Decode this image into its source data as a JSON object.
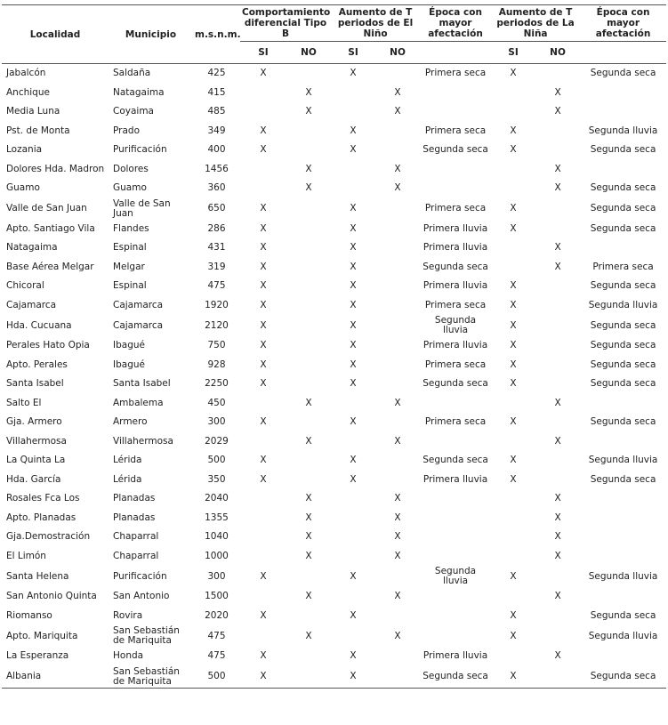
{
  "header": {
    "columns": [
      "Localidad",
      "Municipio",
      "m.s.n.m.",
      "Comportamiento diferencial Tipo B",
      "Aumento de T periodos de El Niño",
      "Época con mayor afectación",
      "Aumento de T periodos de La Niña",
      "Época con mayor afectación"
    ],
    "sub": [
      "SI",
      "NO",
      "SI",
      "NO",
      "SI",
      "NO"
    ]
  },
  "table": {
    "rows": [
      [
        "Jabalcón",
        "Saldaña",
        "425",
        "X",
        null,
        "X",
        null,
        "Primera seca",
        "X",
        null,
        "Segunda seca"
      ],
      [
        "Anchique",
        "Natagaima",
        "415",
        null,
        "X",
        null,
        "X",
        null,
        null,
        "X",
        null
      ],
      [
        "Media Luna",
        "Coyaima",
        "485",
        null,
        "X",
        null,
        "X",
        null,
        null,
        "X",
        null
      ],
      [
        "Pst. de Monta",
        "Prado",
        "349",
        "X",
        null,
        "X",
        null,
        "Primera seca",
        "X",
        null,
        "Segunda lluvia"
      ],
      [
        "Lozania",
        "Purificación",
        "400",
        "X",
        null,
        "X",
        null,
        "Segunda seca",
        "X",
        null,
        "Segunda seca"
      ],
      [
        "Dolores Hda. Madron",
        "Dolores",
        "1456",
        null,
        "X",
        null,
        "X",
        null,
        null,
        "X",
        null
      ],
      [
        "Guamo",
        "Guamo",
        "360",
        null,
        "X",
        null,
        "X",
        null,
        null,
        "X",
        "Segunda seca"
      ],
      [
        "Valle de San Juan",
        "Valle de San Juan",
        "650",
        "X",
        null,
        "X",
        null,
        "Primera seca",
        "X",
        null,
        "Segunda seca"
      ],
      [
        "Apto. Santiago Vila",
        "Flandes",
        "286",
        "X",
        null,
        "X",
        null,
        "Primera lluvia",
        "X",
        null,
        "Segunda seca"
      ],
      [
        "Natagaima",
        "Espinal",
        "431",
        "X",
        null,
        "X",
        null,
        "Primera lluvia",
        null,
        "X",
        null
      ],
      [
        "Base Aérea Melgar",
        "Melgar",
        "319",
        "X",
        null,
        "X",
        null,
        "Segunda seca",
        null,
        "X",
        "Primera seca"
      ],
      [
        "Chicoral",
        "Espinal",
        "475",
        "X",
        null,
        "X",
        null,
        "Primera lluvia",
        "X",
        null,
        "Segunda seca"
      ],
      [
        "Cajamarca",
        "Cajamarca",
        "1920",
        "X",
        null,
        "X",
        null,
        "Primera seca",
        "X",
        null,
        "Segunda lluvia"
      ],
      [
        "Hda. Cucuana",
        "Cajamarca",
        "2120",
        "X",
        null,
        "X",
        null,
        "Segunda lluvia",
        "X",
        null,
        "Segunda seca"
      ],
      [
        "Perales Hato Opia",
        "Ibagué",
        "750",
        "X",
        null,
        "X",
        null,
        "Primera lluvia",
        "X",
        null,
        "Segunda seca"
      ],
      [
        "Apto. Perales",
        "Ibagué",
        "928",
        "X",
        null,
        "X",
        null,
        "Primera seca",
        "X",
        null,
        "Segunda seca"
      ],
      [
        "Santa Isabel",
        "Santa Isabel",
        "2250",
        "X",
        null,
        "X",
        null,
        "Segunda seca",
        "X",
        null,
        "Segunda seca"
      ],
      [
        "Salto El",
        "Ambalema",
        "450",
        null,
        "X",
        null,
        "X",
        null,
        null,
        "X",
        null
      ],
      [
        "Gja. Armero",
        "Armero",
        "300",
        "X",
        null,
        "X",
        null,
        "Primera seca",
        "X",
        null,
        "Segunda seca"
      ],
      [
        "Villahermosa",
        "Villahermosa",
        "2029",
        null,
        "X",
        null,
        "X",
        null,
        null,
        "X",
        null
      ],
      [
        "La Quinta La",
        "Lérida",
        "500",
        "X",
        null,
        "X",
        null,
        "Segunda seca",
        "X",
        null,
        "Segunda lluvia"
      ],
      [
        "Hda. García",
        "Lérida",
        "350",
        "X",
        null,
        "X",
        null,
        "Primera lluvia",
        "X",
        null,
        "Segunda seca"
      ],
      [
        "Rosales Fca Los",
        "Planadas",
        "2040",
        null,
        "X",
        null,
        "X",
        null,
        null,
        "X",
        null
      ],
      [
        "Apto. Planadas",
        "Planadas",
        "1355",
        null,
        "X",
        null,
        "X",
        null,
        null,
        "X",
        null
      ],
      [
        "Gja.Demostración",
        "Chaparral",
        "1040",
        null,
        "X",
        null,
        "X",
        null,
        null,
        "X",
        null
      ],
      [
        "El Limón",
        "Chaparral",
        "1000",
        null,
        "X",
        null,
        "X",
        null,
        null,
        "X",
        null
      ],
      [
        "Santa Helena",
        "Purificación",
        "300",
        "X",
        null,
        "X",
        null,
        "Segunda lluvia",
        "X",
        null,
        "Segunda lluvia"
      ],
      [
        "San Antonio Quinta",
        "San Antonio",
        "1500",
        null,
        "X",
        null,
        "X",
        null,
        null,
        "X",
        null
      ],
      [
        "Riomanso",
        "Rovira",
        "2020",
        "X",
        null,
        "X",
        null,
        null,
        "X",
        null,
        "Segunda seca"
      ],
      [
        "Apto. Mariquita",
        "San Sebastián de Mariquita",
        "475",
        null,
        "X",
        null,
        "X",
        null,
        "X",
        null,
        "Segunda lluvia"
      ],
      [
        "La Esperanza",
        "Honda",
        "475",
        "X",
        null,
        "X",
        null,
        "Primera lluvia",
        null,
        "X",
        null
      ],
      [
        "Albania",
        "San Sebastián de Mariquita",
        "500",
        "X",
        null,
        "X",
        null,
        "Segunda seca",
        "X",
        null,
        "Segunda seca"
      ]
    ]
  }
}
